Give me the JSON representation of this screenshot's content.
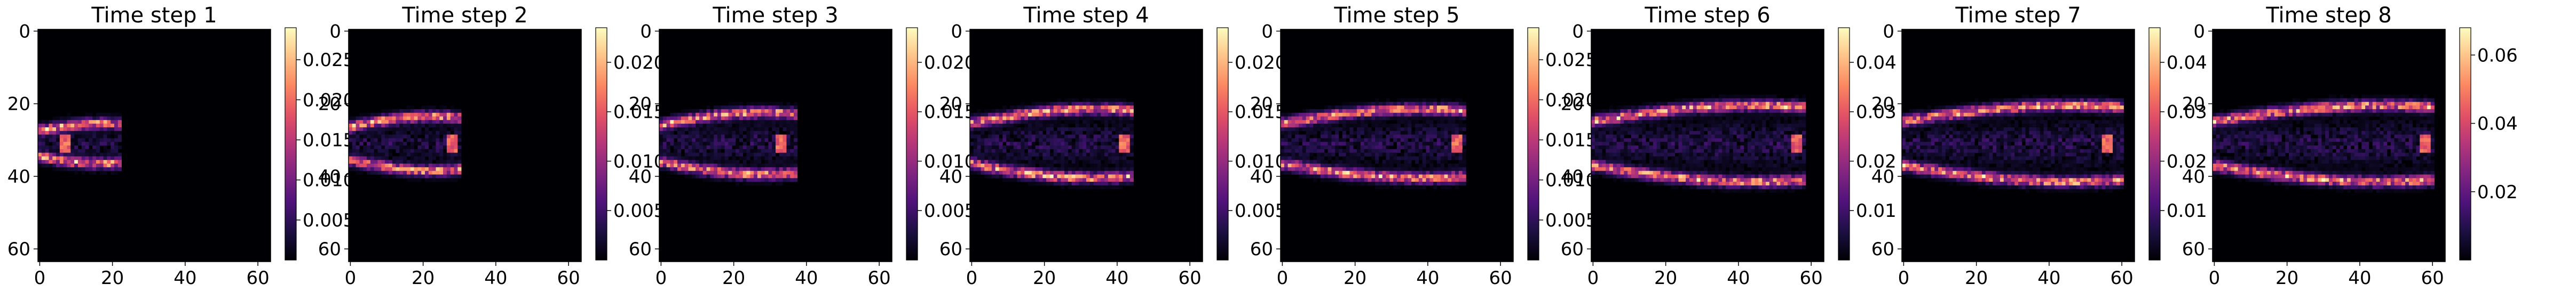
{
  "chart_data": [
    {
      "type": "heatmap",
      "title": "Time step 1",
      "xticks": [
        0,
        20,
        40,
        60
      ],
      "yticks": [
        0,
        20,
        40,
        60
      ],
      "xlim": [
        0,
        64
      ],
      "ylim": [
        64,
        0
      ],
      "colormap": "magma",
      "cbar_ticks": [
        "0.005",
        "0.010",
        "0.015",
        "0.020",
        "0.025"
      ],
      "cbar_range": [
        0,
        0.029
      ],
      "extent": 22,
      "spread": 4,
      "peak_x": 7
    },
    {
      "type": "heatmap",
      "title": "Time step 2",
      "xticks": [
        0,
        20,
        40,
        60
      ],
      "yticks": [
        0,
        20,
        40,
        60
      ],
      "xlim": [
        0,
        64
      ],
      "ylim": [
        64,
        0
      ],
      "colormap": "magma",
      "cbar_ticks": [
        "0.005",
        "0.010",
        "0.015",
        "0.020"
      ],
      "cbar_range": [
        0,
        0.0235
      ],
      "extent": 30,
      "spread": 6,
      "peak_x": 28
    },
    {
      "type": "heatmap",
      "title": "Time step 3",
      "xticks": [
        0,
        20,
        40,
        60
      ],
      "yticks": [
        0,
        20,
        40,
        60
      ],
      "xlim": [
        0,
        64
      ],
      "ylim": [
        64,
        0
      ],
      "colormap": "magma",
      "cbar_ticks": [
        "0.005",
        "0.010",
        "0.015",
        "0.020"
      ],
      "cbar_range": [
        0,
        0.0235
      ],
      "extent": 37,
      "spread": 7,
      "peak_x": 33
    },
    {
      "type": "heatmap",
      "title": "Time step 4",
      "xticks": [
        0,
        20,
        40,
        60
      ],
      "yticks": [
        0,
        20,
        40,
        60
      ],
      "xlim": [
        0,
        64
      ],
      "ylim": [
        64,
        0
      ],
      "colormap": "magma",
      "cbar_ticks": [
        "0.005",
        "0.010",
        "0.015",
        "0.020"
      ],
      "cbar_range": [
        0,
        0.0235
      ],
      "extent": 44,
      "spread": 8,
      "peak_x": 42
    },
    {
      "type": "heatmap",
      "title": "Time step 5",
      "xticks": [
        0,
        20,
        40,
        60
      ],
      "yticks": [
        0,
        20,
        40,
        60
      ],
      "xlim": [
        0,
        64
      ],
      "ylim": [
        64,
        0
      ],
      "colormap": "magma",
      "cbar_ticks": [
        "0.005",
        "0.010",
        "0.015",
        "0.020",
        "0.025"
      ],
      "cbar_range": [
        0,
        0.029
      ],
      "extent": 50,
      "spread": 8,
      "peak_x": 48
    },
    {
      "type": "heatmap",
      "title": "Time step 6",
      "xticks": [
        0,
        20,
        40,
        60
      ],
      "yticks": [
        0,
        20,
        40,
        60
      ],
      "xlim": [
        0,
        64
      ],
      "ylim": [
        64,
        0
      ],
      "colormap": "magma",
      "cbar_ticks": [
        "0.01",
        "0.02",
        "0.03",
        "0.04"
      ],
      "cbar_range": [
        0,
        0.047
      ],
      "extent": 58,
      "spread": 9,
      "peak_x": 56
    },
    {
      "type": "heatmap",
      "title": "Time step 7",
      "xticks": [
        0,
        20,
        40,
        60
      ],
      "yticks": [
        0,
        20,
        40,
        60
      ],
      "xlim": [
        0,
        64
      ],
      "ylim": [
        64,
        0
      ],
      "colormap": "magma",
      "cbar_ticks": [
        "0.01",
        "0.02",
        "0.03",
        "0.04"
      ],
      "cbar_range": [
        0,
        0.047
      ],
      "extent": 60,
      "spread": 9,
      "peak_x": 56
    },
    {
      "type": "heatmap",
      "title": "Time step 8",
      "xticks": [
        0,
        20,
        40,
        60
      ],
      "yticks": [
        0,
        20,
        40,
        60
      ],
      "xlim": [
        0,
        64
      ],
      "ylim": [
        64,
        0
      ],
      "colormap": "magma",
      "cbar_ticks": [
        "0.02",
        "0.04",
        "0.06"
      ],
      "cbar_range": [
        0,
        0.068
      ],
      "extent": 60,
      "spread": 9,
      "peak_x": 58
    }
  ]
}
